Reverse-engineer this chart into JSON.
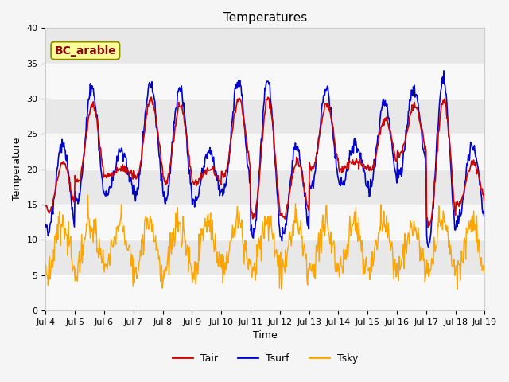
{
  "title": "Temperatures",
  "xlabel": "Time",
  "ylabel": "Temperature",
  "ylim": [
    0,
    40
  ],
  "label_box_text": "BC_arable",
  "legend_labels": [
    "Tair",
    "Tsurf",
    "Tsky"
  ],
  "tair_color": "#CC0000",
  "tsurf_color": "#0000CC",
  "tsky_color": "#FFA500",
  "xticklabels": [
    "Jul 4",
    "Jul 5",
    "Jul 6",
    "Jul 7",
    "Jul 8",
    "Jul 9",
    "Jul 10",
    "Jul 11",
    "Jul 12",
    "Jul 13",
    "Jul 14",
    "Jul 15",
    "Jul 16",
    "Jul 17",
    "Jul 18",
    "Jul 19"
  ],
  "n_days": 15,
  "pts_per_day": 48,
  "day_peaks_tair": [
    21,
    29,
    20,
    30,
    29,
    20,
    30,
    30,
    21,
    29,
    21,
    27,
    29,
    30,
    21
  ],
  "day_mins_tair": [
    14,
    18,
    19,
    19,
    18,
    18,
    19,
    13,
    13,
    20,
    20,
    20,
    22,
    12,
    15
  ],
  "tsky_mean": 9,
  "tsky_amp": 3.5,
  "tsky_noise": 1.2,
  "tsky_min": 3,
  "yticks": [
    0,
    5,
    10,
    15,
    20,
    25,
    30,
    35,
    40
  ],
  "band_colors": [
    "#F8F8F8",
    "#E8E8E8"
  ],
  "fig_bg": "#F5F5F5",
  "ax_bg": "#EBEBEB",
  "grid_color": "#FFFFFF",
  "spine_color": "#CCCCCC",
  "label_box_facecolor": "#FFFF99",
  "label_box_edgecolor": "#8B8B00",
  "label_box_textcolor": "#8B0000"
}
